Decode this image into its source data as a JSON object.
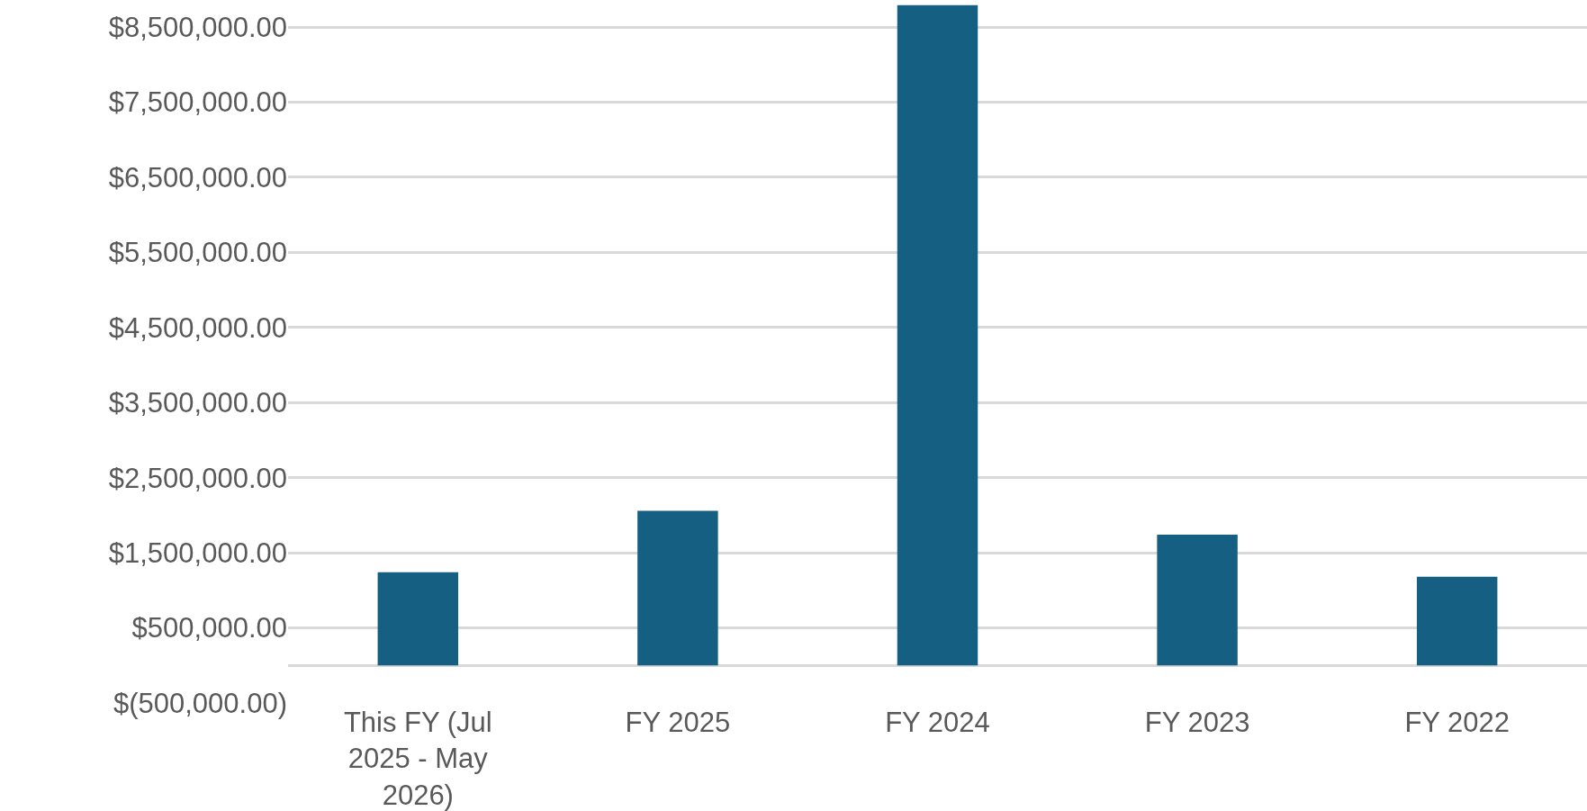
{
  "chart_data": {
    "type": "bar",
    "categories": [
      "This FY (Jul 2025 - May 2026)",
      "FY 2025",
      "FY 2024",
      "FY 2023",
      "FY 2022"
    ],
    "values": [
      1240000,
      2060000,
      8790000,
      1740000,
      1180000
    ],
    "color": "#156082",
    "ylim": [
      -500000,
      8860000
    ],
    "yticks": [
      {
        "value": -500000,
        "label": "$(500,000.00)"
      },
      {
        "value": 500000,
        "label": "$500,000.00"
      },
      {
        "value": 1500000,
        "label": "$1,500,000.00"
      },
      {
        "value": 2500000,
        "label": "$2,500,000.00"
      },
      {
        "value": 3500000,
        "label": "$3,500,000.00"
      },
      {
        "value": 4500000,
        "label": "$4,500,000.00"
      },
      {
        "value": 5500000,
        "label": "$5,500,000.00"
      },
      {
        "value": 6500000,
        "label": "$6,500,000.00"
      },
      {
        "value": 7500000,
        "label": "$7,500,000.00"
      },
      {
        "value": 8500000,
        "label": "$8,500,000.00"
      }
    ],
    "grid": "y"
  }
}
